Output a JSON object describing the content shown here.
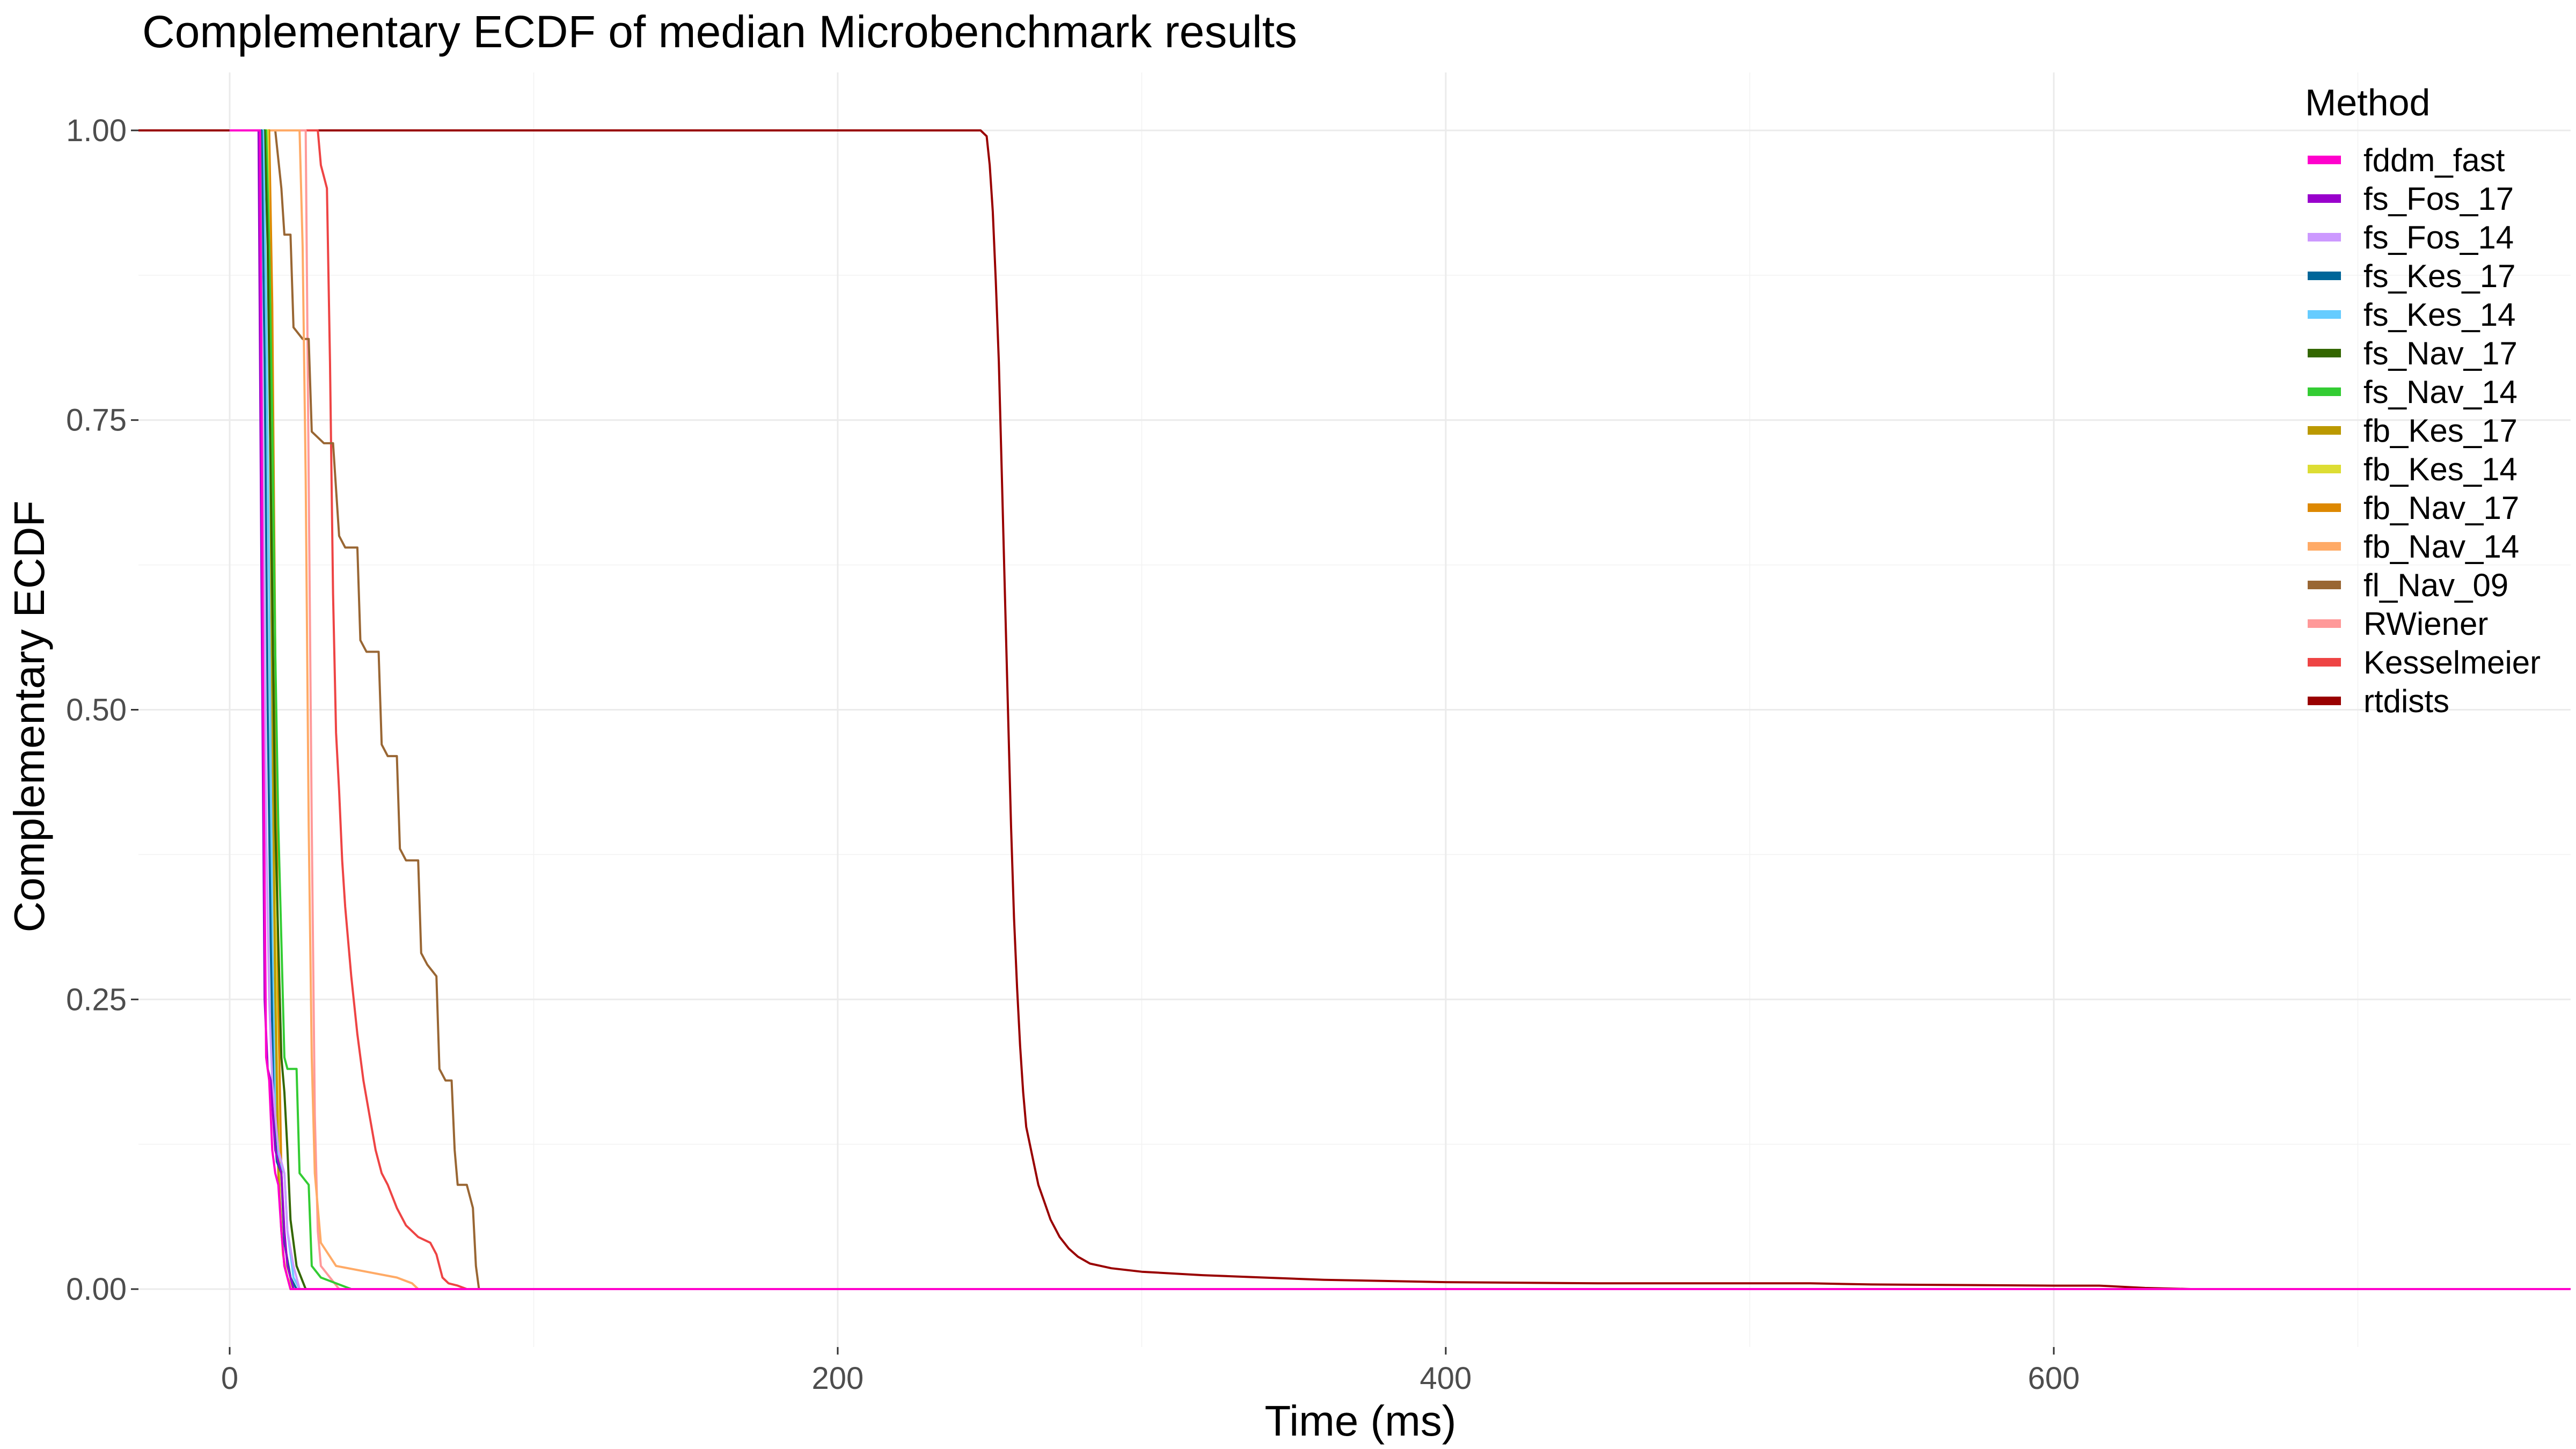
{
  "chart_data": {
    "type": "line",
    "title": "Complementary ECDF of median Microbenchmark results",
    "xlabel": "Time (ms)",
    "ylabel": "Complementary ECDF",
    "xlim": [
      -30,
      770
    ],
    "ylim": [
      -0.05,
      1.05
    ],
    "x_ticks": [
      0,
      200,
      400,
      600
    ],
    "x_tick_labels": [
      "0",
      "200",
      "400",
      "600"
    ],
    "y_ticks": [
      0,
      0.25,
      0.5,
      0.75,
      1.0
    ],
    "y_tick_labels": [
      "0.00",
      "0.25",
      "0.50",
      "0.75",
      "1.00"
    ],
    "grid": true,
    "legend": {
      "title": "Method",
      "position": "right"
    },
    "series": [
      {
        "name": "fddm_fast",
        "color": "#ff00cc",
        "points": [
          [
            0,
            1
          ],
          [
            10,
            1
          ],
          [
            11,
            0.5
          ],
          [
            12,
            0.2
          ],
          [
            13,
            0.18
          ],
          [
            14,
            0.12
          ],
          [
            15,
            0.1
          ],
          [
            16,
            0.09
          ],
          [
            17,
            0.05
          ],
          [
            18,
            0.02
          ],
          [
            20,
            0
          ],
          [
            770,
            0
          ]
        ]
      },
      {
        "name": "fs_Fos_17",
        "color": "#9900cc",
        "points": [
          [
            0,
            1
          ],
          [
            9.5,
            1
          ],
          [
            10.5,
            0.6
          ],
          [
            11.5,
            0.25
          ],
          [
            12.5,
            0.19
          ],
          [
            13.5,
            0.18
          ],
          [
            15,
            0.12
          ],
          [
            17,
            0.1
          ],
          [
            18,
            0.05
          ],
          [
            19,
            0.02
          ],
          [
            21,
            0
          ],
          [
            770,
            0
          ]
        ]
      },
      {
        "name": "fs_Fos_14",
        "color": "#cc99ff",
        "points": [
          [
            0,
            1
          ],
          [
            10,
            1
          ],
          [
            11,
            0.7
          ],
          [
            12,
            0.4
          ],
          [
            13,
            0.25
          ],
          [
            14,
            0.18
          ],
          [
            16,
            0.12
          ],
          [
            18,
            0.1
          ],
          [
            19,
            0.05
          ],
          [
            21,
            0.02
          ],
          [
            23,
            0
          ],
          [
            770,
            0
          ]
        ]
      },
      {
        "name": "fs_Kes_17",
        "color": "#006699",
        "points": [
          [
            0,
            1
          ],
          [
            10.5,
            1
          ],
          [
            11.5,
            0.8
          ],
          [
            12.5,
            0.5
          ],
          [
            13.5,
            0.3
          ],
          [
            14.5,
            0.15
          ],
          [
            15.5,
            0.11
          ],
          [
            17,
            0.1
          ],
          [
            18,
            0.04
          ],
          [
            20,
            0.01
          ],
          [
            22,
            0
          ],
          [
            770,
            0
          ]
        ]
      },
      {
        "name": "fs_Kes_14",
        "color": "#66ccff",
        "points": [
          [
            0,
            1
          ],
          [
            11,
            1
          ],
          [
            12,
            0.85
          ],
          [
            13,
            0.6
          ],
          [
            14,
            0.3
          ],
          [
            15,
            0.15
          ],
          [
            16,
            0.11
          ],
          [
            18,
            0.1
          ],
          [
            19,
            0.05
          ],
          [
            21,
            0.01
          ],
          [
            23,
            0
          ],
          [
            770,
            0
          ]
        ]
      },
      {
        "name": "fs_Nav_17",
        "color": "#336600",
        "points": [
          [
            0,
            1
          ],
          [
            11.5,
            1
          ],
          [
            12.5,
            0.9
          ],
          [
            14,
            0.6
          ],
          [
            15,
            0.4
          ],
          [
            16,
            0.3
          ],
          [
            17,
            0.2
          ],
          [
            18,
            0.17
          ],
          [
            19,
            0.12
          ],
          [
            20,
            0.06
          ],
          [
            22,
            0.02
          ],
          [
            25,
            0
          ],
          [
            770,
            0
          ]
        ]
      },
      {
        "name": "fs_Nav_14",
        "color": "#33cc33",
        "points": [
          [
            0,
            1
          ],
          [
            12,
            1
          ],
          [
            13,
            0.9
          ],
          [
            14,
            0.75
          ],
          [
            15,
            0.55
          ],
          [
            16,
            0.4
          ],
          [
            17,
            0.3
          ],
          [
            18,
            0.2
          ],
          [
            19,
            0.19
          ],
          [
            22,
            0.19
          ],
          [
            23,
            0.1
          ],
          [
            26,
            0.09
          ],
          [
            27,
            0.02
          ],
          [
            30,
            0.01
          ],
          [
            40,
            0
          ],
          [
            770,
            0
          ]
        ]
      },
      {
        "name": "fb_Kes_17",
        "color": "#bb9900",
        "points": [
          [
            0,
            1
          ],
          [
            12,
            1
          ],
          [
            13,
            0.85
          ],
          [
            14,
            0.5
          ],
          [
            15,
            0.25
          ],
          [
            16,
            0.1
          ],
          [
            17,
            0.05
          ],
          [
            18,
            0.02
          ],
          [
            20,
            0
          ],
          [
            770,
            0
          ]
        ]
      },
      {
        "name": "fb_Kes_14",
        "color": "#dddd33",
        "points": [
          [
            0,
            1
          ],
          [
            12.5,
            1
          ],
          [
            13.5,
            0.8
          ],
          [
            14.5,
            0.45
          ],
          [
            15.5,
            0.2
          ],
          [
            16.5,
            0.08
          ],
          [
            17.5,
            0.03
          ],
          [
            19,
            0.01
          ],
          [
            21,
            0
          ],
          [
            770,
            0
          ]
        ]
      },
      {
        "name": "fb_Nav_17",
        "color": "#dd8800",
        "points": [
          [
            0,
            1
          ],
          [
            13,
            1
          ],
          [
            14,
            0.85
          ],
          [
            15,
            0.55
          ],
          [
            16,
            0.25
          ],
          [
            17,
            0.1
          ],
          [
            18,
            0.04
          ],
          [
            20,
            0.01
          ],
          [
            22,
            0
          ],
          [
            770,
            0
          ]
        ]
      },
      {
        "name": "fb_Nav_14",
        "color": "#ffaa66",
        "points": [
          [
            0,
            1
          ],
          [
            23,
            1
          ],
          [
            24,
            0.9
          ],
          [
            25,
            0.7
          ],
          [
            26,
            0.4
          ],
          [
            27,
            0.2
          ],
          [
            28,
            0.1
          ],
          [
            30,
            0.04
          ],
          [
            35,
            0.02
          ],
          [
            45,
            0.015
          ],
          [
            55,
            0.01
          ],
          [
            60,
            0.005
          ],
          [
            62,
            0
          ],
          [
            770,
            0
          ]
        ]
      },
      {
        "name": "fl_Nav_09",
        "color": "#996633",
        "points": [
          [
            0,
            1
          ],
          [
            15,
            1
          ],
          [
            17,
            0.95
          ],
          [
            18,
            0.91
          ],
          [
            20,
            0.91
          ],
          [
            21,
            0.83
          ],
          [
            24,
            0.82
          ],
          [
            26,
            0.82
          ],
          [
            27,
            0.74
          ],
          [
            31,
            0.73
          ],
          [
            34,
            0.73
          ],
          [
            36,
            0.65
          ],
          [
            38,
            0.64
          ],
          [
            42,
            0.64
          ],
          [
            43,
            0.56
          ],
          [
            45,
            0.55
          ],
          [
            49,
            0.55
          ],
          [
            50,
            0.47
          ],
          [
            52,
            0.46
          ],
          [
            55,
            0.46
          ],
          [
            56,
            0.38
          ],
          [
            58,
            0.37
          ],
          [
            62,
            0.37
          ],
          [
            63,
            0.29
          ],
          [
            65,
            0.28
          ],
          [
            68,
            0.27
          ],
          [
            69,
            0.19
          ],
          [
            71,
            0.18
          ],
          [
            73,
            0.18
          ],
          [
            74,
            0.12
          ],
          [
            75,
            0.09
          ],
          [
            78,
            0.09
          ],
          [
            79,
            0.08
          ],
          [
            80,
            0.07
          ],
          [
            81,
            0.02
          ],
          [
            82,
            0
          ],
          [
            770,
            0
          ]
        ]
      },
      {
        "name": "RWiener",
        "color": "#ff9999",
        "points": [
          [
            0,
            1
          ],
          [
            25,
            1
          ],
          [
            26,
            0.7
          ],
          [
            27,
            0.4
          ],
          [
            28,
            0.15
          ],
          [
            29,
            0.05
          ],
          [
            30,
            0.02
          ],
          [
            33,
            0.01
          ],
          [
            36,
            0
          ],
          [
            770,
            0
          ]
        ]
      },
      {
        "name": "Kesselmeier",
        "color": "#ee4444",
        "points": [
          [
            0,
            1
          ],
          [
            29,
            1
          ],
          [
            30,
            0.97
          ],
          [
            31,
            0.96
          ],
          [
            32,
            0.95
          ],
          [
            33,
            0.8
          ],
          [
            34,
            0.6
          ],
          [
            35,
            0.48
          ],
          [
            36,
            0.43
          ],
          [
            37,
            0.37
          ],
          [
            38,
            0.33
          ],
          [
            40,
            0.27
          ],
          [
            42,
            0.22
          ],
          [
            44,
            0.18
          ],
          [
            46,
            0.15
          ],
          [
            48,
            0.12
          ],
          [
            50,
            0.1
          ],
          [
            52,
            0.09
          ],
          [
            55,
            0.07
          ],
          [
            58,
            0.055
          ],
          [
            62,
            0.045
          ],
          [
            66,
            0.04
          ],
          [
            68,
            0.03
          ],
          [
            69,
            0.02
          ],
          [
            70,
            0.01
          ],
          [
            72,
            0.005
          ],
          [
            75,
            0.003
          ],
          [
            78,
            0
          ],
          [
            770,
            0
          ]
        ]
      },
      {
        "name": "rtdists",
        "color": "#990000",
        "points": [
          [
            -30,
            1
          ],
          [
            247,
            1
          ],
          [
            249,
            0.995
          ],
          [
            250,
            0.97
          ],
          [
            251,
            0.93
          ],
          [
            252,
            0.87
          ],
          [
            253,
            0.8
          ],
          [
            254,
            0.7
          ],
          [
            255,
            0.6
          ],
          [
            256,
            0.5
          ],
          [
            257,
            0.4
          ],
          [
            258,
            0.32
          ],
          [
            259,
            0.26
          ],
          [
            260,
            0.21
          ],
          [
            261,
            0.17
          ],
          [
            262,
            0.14
          ],
          [
            264,
            0.115
          ],
          [
            266,
            0.09
          ],
          [
            268,
            0.075
          ],
          [
            270,
            0.06
          ],
          [
            273,
            0.045
          ],
          [
            276,
            0.035
          ],
          [
            279,
            0.028
          ],
          [
            283,
            0.022
          ],
          [
            290,
            0.018
          ],
          [
            300,
            0.015
          ],
          [
            320,
            0.012
          ],
          [
            340,
            0.01
          ],
          [
            360,
            0.008
          ],
          [
            380,
            0.007
          ],
          [
            400,
            0.006
          ],
          [
            450,
            0.005
          ],
          [
            520,
            0.005
          ],
          [
            540,
            0.004
          ],
          [
            600,
            0.003
          ],
          [
            615,
            0.003
          ],
          [
            630,
            0.001
          ],
          [
            645,
            0
          ],
          [
            770,
            0
          ]
        ]
      }
    ]
  }
}
